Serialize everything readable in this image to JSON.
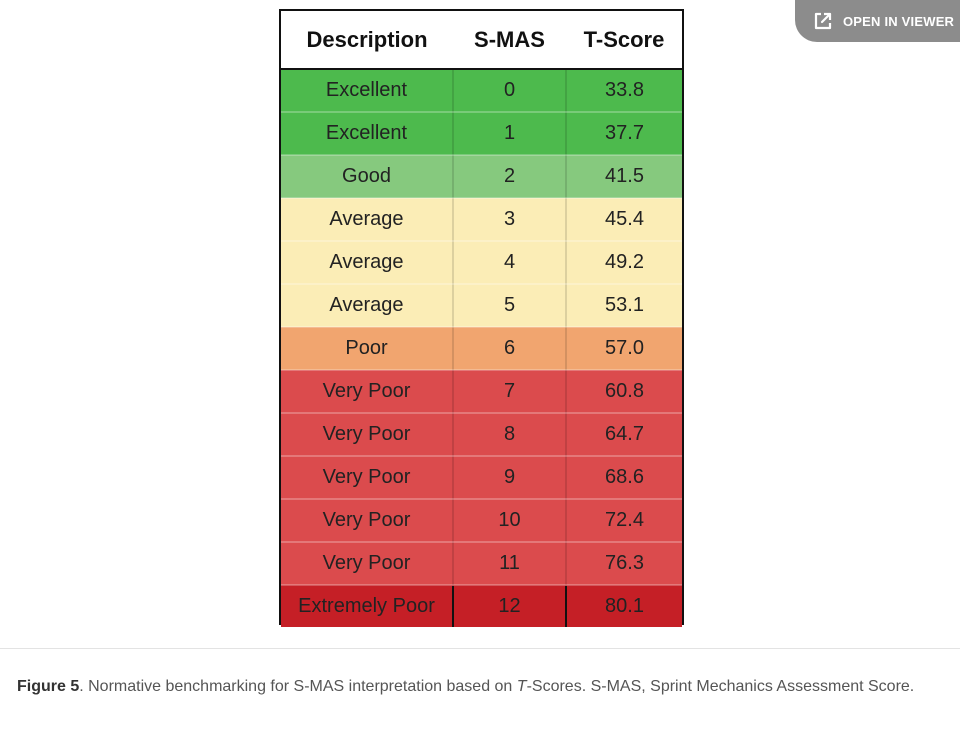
{
  "viewer_button": {
    "label": "OPEN IN VIEWER",
    "icon": "external-link-icon",
    "color": "#8c8c8c"
  },
  "table": {
    "headers": [
      "Description",
      "S-MAS",
      "T-Score"
    ],
    "rows": [
      {
        "description": "Excellent",
        "smas": "0",
        "tscore": "33.8",
        "color": "#4dba4d"
      },
      {
        "description": "Excellent",
        "smas": "1",
        "tscore": "37.7",
        "color": "#4dba4d"
      },
      {
        "description": "Good",
        "smas": "2",
        "tscore": "41.5",
        "color": "#86c97e"
      },
      {
        "description": "Average",
        "smas": "3",
        "tscore": "45.4",
        "color": "#fbedb6"
      },
      {
        "description": "Average",
        "smas": "4",
        "tscore": "49.2",
        "color": "#fbedb6"
      },
      {
        "description": "Average",
        "smas": "5",
        "tscore": "53.1",
        "color": "#fbedb6"
      },
      {
        "description": "Poor",
        "smas": "6",
        "tscore": "57.0",
        "color": "#f1a56f"
      },
      {
        "description": "Very Poor",
        "smas": "7",
        "tscore": "60.8",
        "color": "#db4b4d"
      },
      {
        "description": "Very Poor",
        "smas": "8",
        "tscore": "64.7",
        "color": "#db4b4d"
      },
      {
        "description": "Very Poor",
        "smas": "9",
        "tscore": "68.6",
        "color": "#db4b4d"
      },
      {
        "description": "Very Poor",
        "smas": "10",
        "tscore": "72.4",
        "color": "#db4b4d"
      },
      {
        "description": "Very Poor",
        "smas": "11",
        "tscore": "76.3",
        "color": "#db4b4d"
      },
      {
        "description": "Extremely Poor",
        "smas": "12",
        "tscore": "80.1",
        "color": "#c51f26"
      }
    ]
  },
  "caption": {
    "label": "Figure 5",
    "text_before": ". Normative benchmarking for S-MAS interpretation based on ",
    "italic": "T",
    "text_after": "-Scores. S-MAS, Sprint Mechanics Assessment Score."
  }
}
